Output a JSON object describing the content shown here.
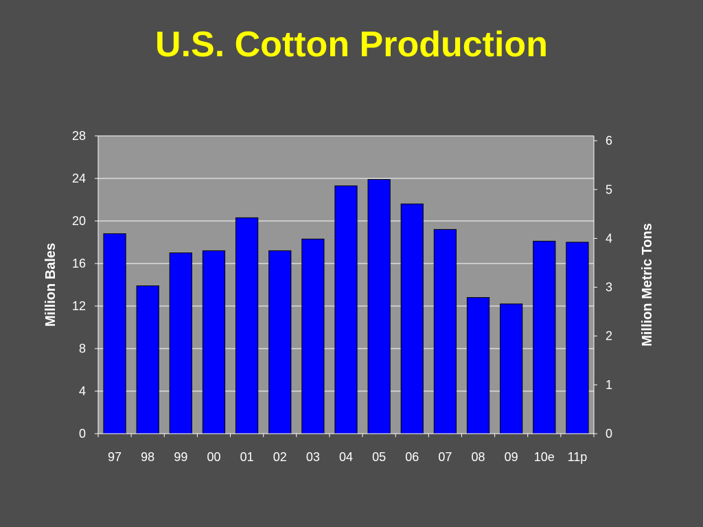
{
  "title": "U.S. Cotton Production",
  "colors": {
    "background": "#4d4d4d",
    "plot_area": "#969696",
    "bar_fill": "#0000ff",
    "title": "#ffff00",
    "text": "#ffffff"
  },
  "chart_data": {
    "type": "bar",
    "title": "U.S. Cotton Production",
    "categories": [
      "97",
      "98",
      "99",
      "00",
      "01",
      "02",
      "03",
      "04",
      "05",
      "06",
      "07",
      "08",
      "09",
      "10e",
      "11p"
    ],
    "values": [
      18.8,
      13.9,
      17.0,
      17.2,
      20.3,
      17.2,
      18.3,
      23.3,
      23.9,
      21.6,
      19.2,
      12.8,
      12.2,
      18.1,
      18.0
    ],
    "ylabel": "Million Bales",
    "ylim": [
      0,
      28
    ],
    "yticks": [
      0,
      4,
      8,
      12,
      16,
      20,
      24,
      28
    ],
    "y2label": "Million Metric Tons",
    "y2lim": [
      0,
      6.1
    ],
    "y2ticks": [
      0,
      1,
      2,
      3,
      4,
      5,
      6
    ],
    "grid": true,
    "legend": "none"
  }
}
